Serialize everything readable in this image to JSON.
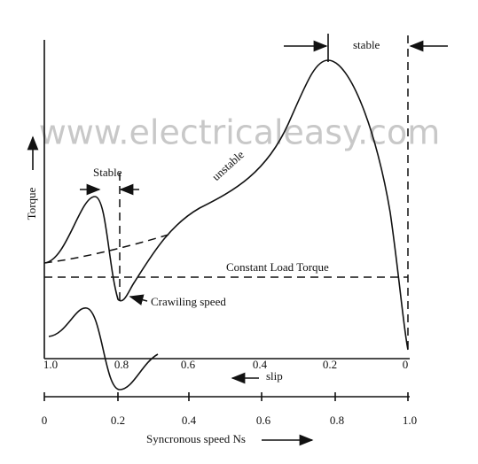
{
  "watermark": "www.electricaleasy.com",
  "y_axis_label": "Torque",
  "labels": {
    "stable_top": "stable",
    "stable_left": "Stable",
    "unstable": "unstable",
    "load_torque": "Constant Load Torque",
    "crawling": "Crawiling speed"
  },
  "slip_axis": {
    "label": "slip",
    "ticks": [
      "1.0",
      "0.8",
      "0.6",
      "0.4",
      "0.2",
      "0"
    ]
  },
  "speed_axis": {
    "label": "Syncronous speed Ns",
    "ticks": [
      "0",
      "0.2",
      "0.4",
      "0.6",
      "0.8",
      "1.0"
    ]
  }
}
